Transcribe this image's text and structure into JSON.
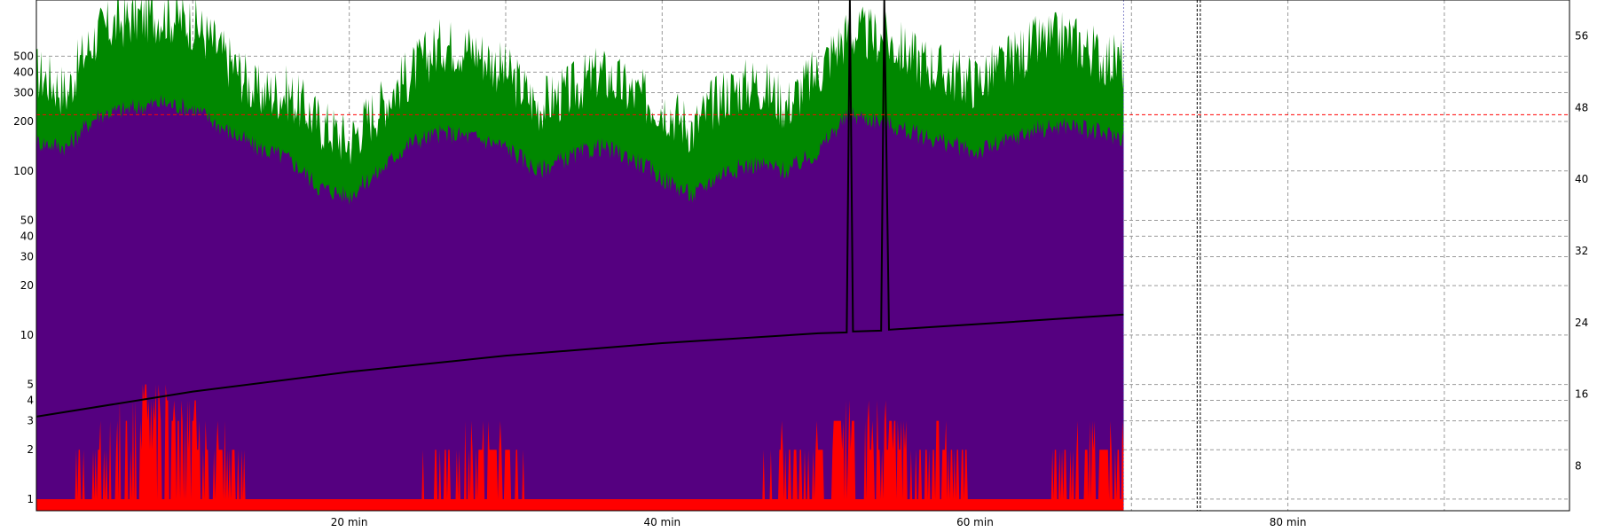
{
  "chart_data": {
    "type": "area",
    "title": "",
    "xlabel": "",
    "ylabel": "",
    "x_unit": "min",
    "x_range": [
      0,
      98
    ],
    "x_ticks": [
      {
        "value": 20,
        "label": "20 min"
      },
      {
        "value": 40,
        "label": "40 min"
      },
      {
        "value": 60,
        "label": "60 min"
      },
      {
        "value": 80,
        "label": "80 min"
      }
    ],
    "y_left": {
      "scale": "log",
      "range": [
        0.85,
        1100
      ],
      "ticks": [
        1,
        2,
        3,
        4,
        5,
        10,
        20,
        30,
        40,
        50,
        100,
        200,
        300,
        400,
        500
      ],
      "tick_labels": [
        "1",
        "2",
        "3",
        "4",
        "5",
        "10",
        "20",
        "30",
        "40",
        "50",
        "100",
        "200",
        "300",
        "400",
        "500"
      ]
    },
    "y_right": {
      "scale": "linear",
      "range": [
        3,
        60
      ],
      "ticks": [
        8,
        16,
        24,
        32,
        40,
        48,
        56
      ],
      "tick_labels": [
        "8",
        "16",
        "24",
        "32",
        "40",
        "48",
        "56"
      ]
    },
    "data_end_minute": 69.5,
    "vertical_markers_min": [
      74.2,
      74.4
    ],
    "reference_line": {
      "value": 220,
      "axis": "left",
      "color": "#ff0000",
      "style": "dashed"
    },
    "grid": true,
    "series": [
      {
        "color": "#008800",
        "style": "filled-area",
        "axis": "left",
        "x": [
          0,
          2,
          4,
          6,
          8,
          10,
          12,
          14,
          16,
          18,
          20,
          22,
          24,
          26,
          28,
          30,
          32,
          34,
          36,
          38,
          40,
          42,
          44,
          46,
          48,
          50,
          52,
          54,
          56,
          58,
          60,
          62,
          64,
          66,
          68,
          69.5
        ],
        "values": [
          400,
          300,
          700,
          850,
          900,
          800,
          500,
          300,
          300,
          200,
          150,
          250,
          400,
          600,
          550,
          400,
          250,
          300,
          400,
          300,
          250,
          180,
          300,
          350,
          250,
          400,
          700,
          650,
          500,
          400,
          350,
          450,
          600,
          650,
          500,
          450
        ]
      },
      {
        "color": "#550080",
        "style": "filled-area",
        "axis": "left",
        "x": [
          0,
          2,
          4,
          6,
          8,
          10,
          12,
          14,
          16,
          18,
          20,
          22,
          24,
          26,
          28,
          30,
          32,
          34,
          36,
          38,
          40,
          42,
          44,
          46,
          48,
          50,
          52,
          54,
          56,
          58,
          60,
          62,
          64,
          66,
          68,
          69.5
        ],
        "values": [
          150,
          140,
          220,
          240,
          260,
          240,
          180,
          140,
          120,
          80,
          70,
          100,
          150,
          170,
          160,
          140,
          100,
          120,
          140,
          120,
          90,
          70,
          100,
          110,
          100,
          130,
          220,
          200,
          170,
          150,
          130,
          150,
          180,
          190,
          170,
          160
        ]
      },
      {
        "color": "#ff0000",
        "style": "filled-area",
        "axis": "left",
        "x": [
          0,
          2,
          4,
          6,
          8,
          10,
          12,
          14,
          16,
          18,
          20,
          22,
          24,
          26,
          28,
          30,
          32,
          34,
          36,
          38,
          40,
          42,
          44,
          46,
          48,
          50,
          52,
          54,
          56,
          58,
          60,
          62,
          64,
          66,
          68,
          69.5
        ],
        "values": [
          1,
          1,
          2,
          3,
          4,
          3,
          2,
          1,
          1,
          1,
          1,
          1,
          1,
          2,
          2,
          2,
          1,
          1,
          1,
          1,
          1,
          1,
          1,
          1,
          2,
          2,
          3,
          3,
          2,
          2,
          1,
          1,
          1,
          2,
          2,
          2
        ]
      },
      {
        "color": "#000000",
        "style": "line",
        "axis": "right",
        "x": [
          0,
          10,
          20,
          30,
          40,
          50,
          51.8,
          52.0,
          52.2,
          54.0,
          54.2,
          54.5,
          60,
          69.5
        ],
        "values": [
          13.5,
          16.3,
          18.5,
          20.3,
          21.7,
          22.8,
          22.9,
          60,
          23.0,
          23.1,
          60,
          23.2,
          23.8,
          24.9
        ]
      }
    ]
  }
}
